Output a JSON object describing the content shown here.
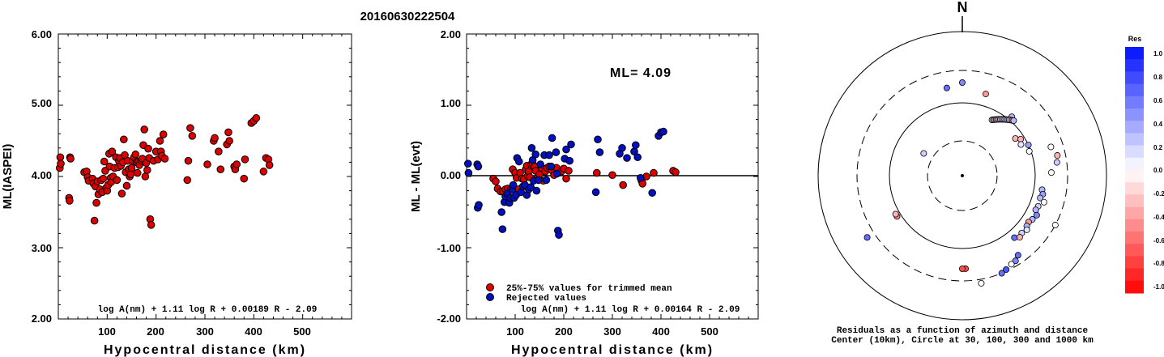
{
  "page_title": "20160630222504",
  "chart_data": [
    {
      "type": "scatter",
      "xlabel": "Hypocentral distance (km)",
      "ylabel": "ML(IASPEI)",
      "xlim": [
        0,
        600
      ],
      "ylim": [
        2.0,
        6.0
      ],
      "x_ticks": [
        "100",
        "200",
        "300",
        "400",
        "500"
      ],
      "y_ticks": [
        "2.00",
        "3.00",
        "4.00",
        "5.00",
        "6.00"
      ],
      "formula": "log A(nm) + 1.11 log R + 0.00189 R - 2.09",
      "marker_color": "#dd0000",
      "points": [
        [
          3,
          4.12
        ],
        [
          4,
          4.27
        ],
        [
          5,
          4.18
        ],
        [
          22,
          3.7
        ],
        [
          23,
          3.66
        ],
        [
          24,
          4.27
        ],
        [
          25,
          4.25
        ],
        [
          53,
          4.06
        ],
        [
          58,
          4.07
        ],
        [
          60,
          3.99
        ],
        [
          62,
          3.94
        ],
        [
          70,
          3.97
        ],
        [
          72,
          3.9
        ],
        [
          74,
          3.38
        ],
        [
          76,
          3.86
        ],
        [
          78,
          3.63
        ],
        [
          80,
          3.93
        ],
        [
          82,
          3.75
        ],
        [
          85,
          3.82
        ],
        [
          88,
          3.95
        ],
        [
          90,
          3.78
        ],
        [
          92,
          3.97
        ],
        [
          94,
          4.21
        ],
        [
          96,
          4.08
        ],
        [
          98,
          3.84
        ],
        [
          100,
          3.8
        ],
        [
          102,
          3.88
        ],
        [
          104,
          4.32
        ],
        [
          105,
          4.14
        ],
        [
          107,
          3.98
        ],
        [
          108,
          3.92
        ],
        [
          110,
          4.35
        ],
        [
          112,
          4.0
        ],
        [
          115,
          4.12
        ],
        [
          118,
          4.27
        ],
        [
          120,
          3.95
        ],
        [
          122,
          4.13
        ],
        [
          124,
          4.22
        ],
        [
          126,
          4.26
        ],
        [
          128,
          4.15
        ],
        [
          130,
          3.76
        ],
        [
          132,
          4.2
        ],
        [
          134,
          4.52
        ],
        [
          136,
          4.3
        ],
        [
          138,
          4.06
        ],
        [
          140,
          3.87
        ],
        [
          142,
          4.22
        ],
        [
          144,
          4.1
        ],
        [
          146,
          4.0
        ],
        [
          148,
          4.03
        ],
        [
          150,
          4.12
        ],
        [
          152,
          4.22
        ],
        [
          155,
          4.27
        ],
        [
          158,
          4.31
        ],
        [
          160,
          4.2
        ],
        [
          162,
          4.05
        ],
        [
          164,
          4.21
        ],
        [
          166,
          4.16
        ],
        [
          170,
          4.22
        ],
        [
          172,
          4.25
        ],
        [
          174,
          4.44
        ],
        [
          176,
          4.66
        ],
        [
          178,
          4.0
        ],
        [
          180,
          4.19
        ],
        [
          182,
          4.09
        ],
        [
          184,
          4.39
        ],
        [
          186,
          4.26
        ],
        [
          188,
          3.4
        ],
        [
          190,
          3.32
        ],
        [
          195,
          4.22
        ],
        [
          200,
          4.35
        ],
        [
          204,
          4.24
        ],
        [
          208,
          4.5
        ],
        [
          210,
          4.35
        ],
        [
          212,
          4.29
        ],
        [
          215,
          4.59
        ],
        [
          218,
          4.25
        ],
        [
          264,
          3.95
        ],
        [
          266,
          4.22
        ],
        [
          270,
          4.68
        ],
        [
          274,
          4.57
        ],
        [
          305,
          4.17
        ],
        [
          318,
          4.5
        ],
        [
          320,
          4.54
        ],
        [
          328,
          4.35
        ],
        [
          332,
          4.1
        ],
        [
          345,
          4.45
        ],
        [
          348,
          4.62
        ],
        [
          350,
          4.5
        ],
        [
          360,
          4.14
        ],
        [
          362,
          4.1
        ],
        [
          365,
          4.17
        ],
        [
          380,
          3.97
        ],
        [
          382,
          4.24
        ],
        [
          395,
          4.75
        ],
        [
          400,
          4.78
        ],
        [
          405,
          4.82
        ],
        [
          420,
          4.07
        ],
        [
          425,
          4.26
        ],
        [
          430,
          4.24
        ],
        [
          432,
          4.16
        ]
      ]
    },
    {
      "type": "scatter",
      "xlabel": "Hypocentral distance (km)",
      "ylabel": "ML - ML(evt)",
      "xlim": [
        0,
        600
      ],
      "ylim": [
        -2.0,
        2.0
      ],
      "x_ticks": [
        "100",
        "200",
        "300",
        "400",
        "500"
      ],
      "y_ticks": [
        "-2.00",
        "-1.00",
        "0.00",
        "1.00",
        "2.00"
      ],
      "annotation": "ML= 4.09",
      "formula": "log A(nm) + 1.11 log R + 0.00164 R - 2.09",
      "legend": [
        {
          "label": "25%-75% values for trimmed mean",
          "color": "#dd0000"
        },
        {
          "label": "Rejected values",
          "color": "#0010c0"
        }
      ],
      "series": [
        {
          "name": "25%-75% values for trimmed mean",
          "color": "#dd0000",
          "points": [
            [
              55,
              -0.03
            ],
            [
              60,
              -0.07
            ],
            [
              64,
              -0.17
            ],
            [
              70,
              -0.21
            ],
            [
              75,
              -0.21
            ],
            [
              80,
              -0.18
            ],
            [
              85,
              -0.17
            ],
            [
              90,
              -0.19
            ],
            [
              95,
              0.1
            ],
            [
              100,
              0.05
            ],
            [
              103,
              -0.02
            ],
            [
              106,
              -0.18
            ],
            [
              110,
              0.05
            ],
            [
              114,
              -0.03
            ],
            [
              118,
              -0.04
            ],
            [
              122,
              0.1
            ],
            [
              124,
              0.15
            ],
            [
              126,
              0.01
            ],
            [
              128,
              0.07
            ],
            [
              130,
              -0.01
            ],
            [
              133,
              0.17
            ],
            [
              136,
              0.18
            ],
            [
              140,
              0.14
            ],
            [
              142,
              0.08
            ],
            [
              146,
              -0.02
            ],
            [
              150,
              0.03
            ],
            [
              154,
              0.12
            ],
            [
              158,
              -0.06
            ],
            [
              162,
              0.07
            ],
            [
              166,
              0.12
            ],
            [
              170,
              0.14
            ],
            [
              175,
              0.09
            ],
            [
              180,
              0.02
            ],
            [
              185,
              0.12
            ],
            [
              195,
              0.07
            ],
            [
              200,
              0.11
            ],
            [
              205,
              -0.03
            ],
            [
              210,
              0.08
            ],
            [
              268,
              0.05
            ],
            [
              300,
              0.02
            ],
            [
              322,
              -0.12
            ],
            [
              360,
              -0.06
            ],
            [
              362,
              -0.1
            ],
            [
              370,
              0.0
            ],
            [
              385,
              0.05
            ],
            [
              425,
              0.08
            ],
            [
              430,
              0.06
            ]
          ]
        },
        {
          "name": "Rejected values",
          "color": "#0010c0",
          "points": [
            [
              3,
              0.18
            ],
            [
              4,
              0.05
            ],
            [
              22,
              0.17
            ],
            [
              24,
              0.14
            ],
            [
              23,
              -0.44
            ],
            [
              25,
              -0.4
            ],
            [
              72,
              -0.5
            ],
            [
              74,
              -0.74
            ],
            [
              78,
              -0.36
            ],
            [
              80,
              -0.28
            ],
            [
              84,
              -0.24
            ],
            [
              88,
              -0.37
            ],
            [
              90,
              -0.3
            ],
            [
              94,
              -0.19
            ],
            [
              96,
              -0.12
            ],
            [
              98,
              -0.3
            ],
            [
              102,
              -0.26
            ],
            [
              104,
              0.26
            ],
            [
              108,
              0.21
            ],
            [
              112,
              -0.22
            ],
            [
              116,
              -0.14
            ],
            [
              120,
              -0.12
            ],
            [
              124,
              -0.26
            ],
            [
              128,
              -0.18
            ],
            [
              132,
              -0.15
            ],
            [
              134,
              0.4
            ],
            [
              136,
              0.23
            ],
            [
              138,
              -0.06
            ],
            [
              142,
              0.31
            ],
            [
              144,
              -0.2
            ],
            [
              148,
              -0.05
            ],
            [
              152,
              0.17
            ],
            [
              160,
              0.3
            ],
            [
              164,
              -0.05
            ],
            [
              170,
              0.3
            ],
            [
              174,
              0.14
            ],
            [
              176,
              0.54
            ],
            [
              184,
              0.34
            ],
            [
              186,
              0.04
            ],
            [
              188,
              -0.76
            ],
            [
              190,
              -0.82
            ],
            [
              202,
              0.25
            ],
            [
              205,
              0.38
            ],
            [
              212,
              0.22
            ],
            [
              215,
              0.45
            ],
            [
              266,
              -0.22
            ],
            [
              270,
              0.52
            ],
            [
              274,
              0.34
            ],
            [
              315,
              0.32
            ],
            [
              320,
              0.4
            ],
            [
              330,
              0.26
            ],
            [
              345,
              0.35
            ],
            [
              348,
              0.44
            ],
            [
              352,
              0.27
            ],
            [
              358,
              -0.02
            ],
            [
              382,
              -0.23
            ],
            [
              395,
              0.57
            ],
            [
              400,
              0.62
            ],
            [
              405,
              0.63
            ]
          ]
        }
      ]
    },
    {
      "type": "scatter",
      "north_label": "N",
      "caption_line1": "Residuals as a function of azimuth and distance",
      "caption_line2": "Center (10km), Circle at 30, 100, 300 and 1000 km",
      "colorbar_title": "Res",
      "colorbar_ticks": [
        "1.0",
        "0.8",
        "0.6",
        "0.4",
        "0.2",
        "0.0",
        "-0.2",
        "-0.4",
        "-0.6",
        "-0.8",
        "-1.0"
      ],
      "points": [
        {
          "az": 16,
          "dist": 105,
          "res": -0.4
        },
        {
          "az": 300,
          "dist": 55,
          "res": 0.2
        },
        {
          "az": 350,
          "dist": 110,
          "res": 0.6
        },
        {
          "az": 0,
          "dist": 115,
          "res": 0.5
        },
        {
          "az": 40,
          "dist": 95,
          "res": 0.3
        },
        {
          "az": 28,
          "dist": 78,
          "res": 0.1
        },
        {
          "az": 29,
          "dist": 79,
          "res": -0.2
        },
        {
          "az": 30,
          "dist": 80,
          "res": 0.3
        },
        {
          "az": 31,
          "dist": 81,
          "res": -0.5
        },
        {
          "az": 32,
          "dist": 82,
          "res": 0.1
        },
        {
          "az": 33,
          "dist": 83,
          "res": 0.2
        },
        {
          "az": 34,
          "dist": 84,
          "res": -0.3
        },
        {
          "az": 35,
          "dist": 85,
          "res": 0.0
        },
        {
          "az": 36,
          "dist": 86,
          "res": 0.3
        },
        {
          "az": 37,
          "dist": 87,
          "res": 0.2
        },
        {
          "az": 38,
          "dist": 88,
          "res": -0.1
        },
        {
          "az": 39,
          "dist": 89,
          "res": 0.4
        },
        {
          "az": 40,
          "dist": 90,
          "res": 0.2
        },
        {
          "az": 41,
          "dist": 91,
          "res": 0.0
        },
        {
          "az": 42,
          "dist": 92,
          "res": -0.6
        },
        {
          "az": 43,
          "dist": 93,
          "res": 0.3
        },
        {
          "az": 55,
          "dist": 80,
          "res": -0.3
        },
        {
          "az": 58,
          "dist": 85,
          "res": -0.3
        },
        {
          "az": 62,
          "dist": 82,
          "res": 0.1
        },
        {
          "az": 65,
          "dist": 90,
          "res": 0.4
        },
        {
          "az": 70,
          "dist": 88,
          "res": 0.0
        },
        {
          "az": 72,
          "dist": 115,
          "res": 0.0
        },
        {
          "az": 78,
          "dist": 120,
          "res": -0.3
        },
        {
          "az": 82,
          "dist": 118,
          "res": 0.2
        },
        {
          "az": 88,
          "dist": 110,
          "res": 0.0
        },
        {
          "az": 100,
          "dist": 100,
          "res": 0.3
        },
        {
          "az": 103,
          "dist": 102,
          "res": 0.4
        },
        {
          "az": 106,
          "dist": 100,
          "res": 0.3
        },
        {
          "az": 108,
          "dist": 106,
          "res": 0.0
        },
        {
          "az": 112,
          "dist": 101,
          "res": 0.2
        },
        {
          "az": 115,
          "dist": 100,
          "res": 0.3
        },
        {
          "az": 118,
          "dist": 104,
          "res": 0.5
        },
        {
          "az": 122,
          "dist": 102,
          "res": 0.3
        },
        {
          "az": 125,
          "dist": 100,
          "res": -0.4
        },
        {
          "az": 128,
          "dist": 101,
          "res": 0.3
        },
        {
          "az": 130,
          "dist": 104,
          "res": 0.1
        },
        {
          "az": 134,
          "dist": 102,
          "res": 0.2
        },
        {
          "az": 137,
          "dist": 104,
          "res": -0.3
        },
        {
          "az": 140,
          "dist": 100,
          "res": 0.6
        },
        {
          "az": 118,
          "dist": 130,
          "res": 0.0
        },
        {
          "az": 145,
          "dist": 120,
          "res": 0.6
        },
        {
          "az": 148,
          "dist": 124,
          "res": 0.5
        },
        {
          "az": 151,
          "dist": 125,
          "res": 0.0
        },
        {
          "az": 155,
          "dist": 128,
          "res": 0.7
        },
        {
          "az": 158,
          "dist": 130,
          "res": 0.6
        },
        {
          "az": 170,
          "dist": 135,
          "res": 0.0
        },
        {
          "az": 178,
          "dist": 115,
          "res": -0.7
        },
        {
          "az": 180,
          "dist": 115,
          "res": -0.7
        },
        {
          "az": 238,
          "dist": 95,
          "res": -0.5
        },
        {
          "az": 240,
          "dist": 95,
          "res": -0.3
        },
        {
          "az": 237,
          "dist": 140,
          "res": 0.6
        }
      ]
    }
  ]
}
